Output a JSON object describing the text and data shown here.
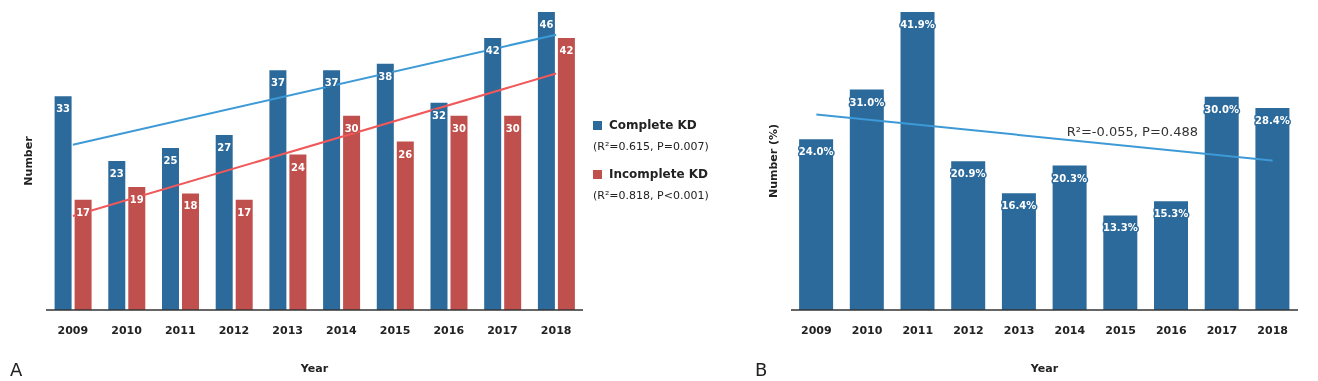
{
  "chart_data": [
    {
      "type": "bar",
      "xlabel": "Year",
      "ylabel": "Number",
      "legend": "right",
      "categories": [
        "2009",
        "2010",
        "2011",
        "2012",
        "2013",
        "2014",
        "2015",
        "2016",
        "2017",
        "2018"
      ],
      "series": [
        {
          "name": "Complete KD",
          "color": "#2b6a9b",
          "values": [
            33,
            23,
            25,
            27,
            37,
            37,
            38,
            32,
            42,
            46
          ],
          "value_labels": [
            "33",
            "23",
            "25",
            "27",
            "37",
            "37",
            "38",
            "32",
            "42",
            "46"
          ]
        },
        {
          "name": "Incomplete KD",
          "color": "#c0504d",
          "values": [
            17,
            19,
            18,
            17,
            24,
            30,
            26,
            30,
            30,
            42
          ],
          "value_labels": [
            "17",
            "19",
            "18",
            "17",
            "24",
            "30",
            "26",
            "30",
            "30",
            "42"
          ]
        },
        {
          "type": "line",
          "color": "#3d9ad6",
          "values": [
            25.5,
            null,
            null,
            null,
            null,
            null,
            null,
            null,
            null,
            42.5
          ]
        },
        {
          "type": "line",
          "color": "#f0585a",
          "values": [
            14.5,
            null,
            null,
            null,
            null,
            null,
            null,
            null,
            null,
            36.5
          ]
        }
      ],
      "annotations": [
        "(R²=0.615, P=0.007)",
        "(R²=0.818, P<0.001)",
        "A"
      ]
    },
    {
      "type": "bar",
      "xlabel": "Year",
      "ylabel": "Number (%)",
      "categories": [
        "2009",
        "2010",
        "2011",
        "2012",
        "2013",
        "2014",
        "2015",
        "2016",
        "2017",
        "2018"
      ],
      "series": [
        {
          "color": "#2b6a9b",
          "values": [
            24.0,
            31.0,
            41.9,
            20.9,
            16.4,
            20.3,
            13.3,
            15.3,
            30.0,
            28.4
          ],
          "value_labels": [
            "24.0%",
            "31.0%",
            "41.9%",
            "20.9%",
            "16.4%",
            "20.3%",
            "13.3%",
            "15.3%",
            "30.0%",
            "28.4%"
          ]
        },
        {
          "type": "line",
          "color": "#3d9ad6",
          "values": [
            27.5,
            null,
            null,
            null,
            null,
            null,
            null,
            null,
            null,
            21
          ]
        }
      ],
      "annotations": [
        "R²=-0.055, P=0.488",
        "B"
      ]
    }
  ]
}
